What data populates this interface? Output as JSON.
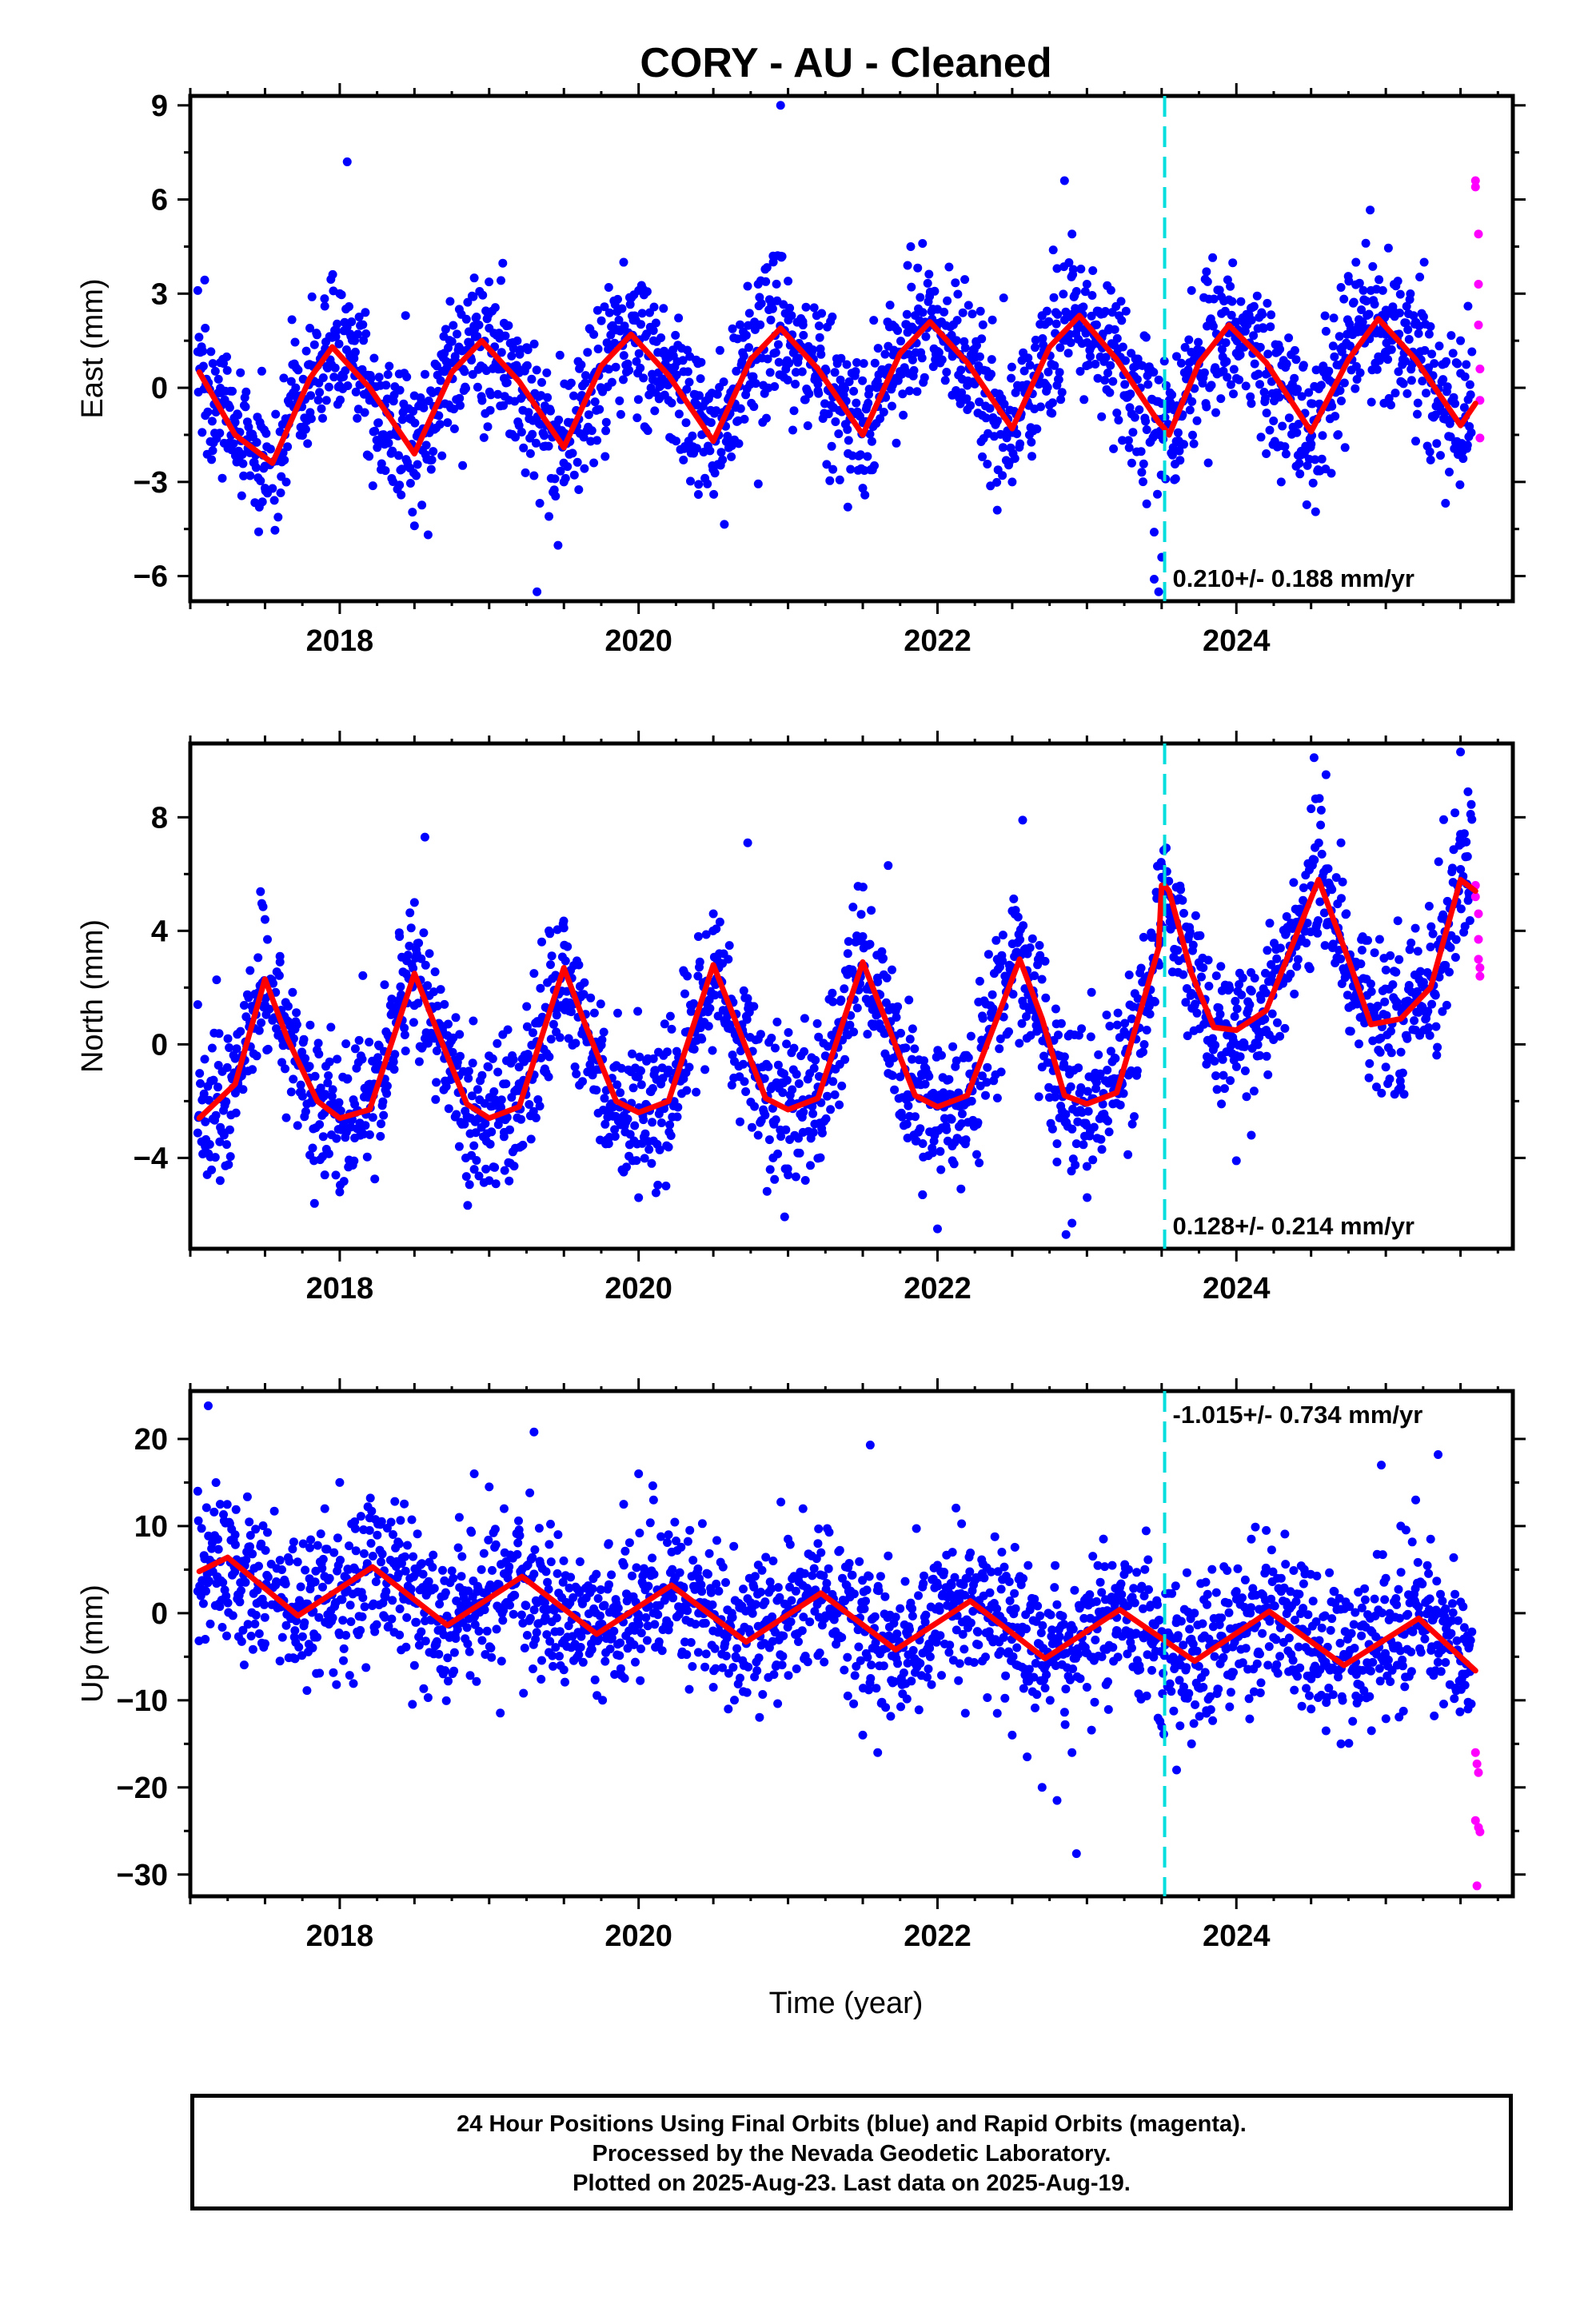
{
  "title": "CORY  - AU - Cleaned",
  "x_axis_label": "Time (year)",
  "colors": {
    "final": "#0000ff",
    "rapid": "#ff00ff",
    "model": "#ff0000",
    "offset": "#00dddd"
  },
  "footer": {
    "line1": "24 Hour Positions Using Final Orbits (blue) and Rapid Orbits (magenta).",
    "line2": "Processed by the Nevada Geodetic Laboratory.",
    "line3": "Plotted on 2025-Aug-23. Last data on 2025-Aug-19."
  },
  "chart_data": [
    {
      "type": "scatter",
      "component": "east",
      "ylabel": "East (mm)",
      "xlim": [
        2017.0,
        2025.85
      ],
      "ylim": [
        -6.8,
        9.3
      ],
      "x_ticks": [
        2018,
        2020,
        2022,
        2024
      ],
      "y_ticks": [
        -6,
        -3,
        0,
        3,
        6,
        9
      ],
      "y_tick_labels": [
        "−6",
        "−3",
        "0",
        "3",
        "6",
        "9"
      ],
      "offset_epoch": 2023.52,
      "rate_label": "0.210+/- 0.188 mm/yr",
      "rate_label_pos": "bottom-right",
      "model": {
        "x": [
          2017.06,
          2017.3,
          2017.55,
          2017.8,
          2017.95,
          2018.2,
          2018.5,
          2018.75,
          2018.95,
          2019.2,
          2019.5,
          2019.75,
          2019.95,
          2020.2,
          2020.5,
          2020.75,
          2020.95,
          2021.2,
          2021.5,
          2021.75,
          2021.95,
          2022.2,
          2022.5,
          2022.75,
          2022.95,
          2023.2,
          2023.48,
          2023.52,
          2023.55,
          2023.75,
          2023.95,
          2024.2,
          2024.5,
          2024.75,
          2024.95,
          2025.2,
          2025.5,
          2025.6
        ],
        "y": [
          0.5,
          -1.5,
          -2.4,
          0.3,
          1.3,
          0.0,
          -2.1,
          0.5,
          1.5,
          0.2,
          -1.9,
          0.7,
          1.7,
          0.4,
          -1.7,
          0.9,
          1.9,
          0.6,
          -1.5,
          1.1,
          2.1,
          0.8,
          -1.3,
          1.3,
          2.3,
          0.9,
          -1.1,
          -1.3,
          -1.5,
          0.8,
          2.0,
          0.8,
          -1.4,
          0.9,
          2.2,
          0.9,
          -1.2,
          -0.5
        ]
      },
      "final_samples": {
        "x": [
          2017.05,
          2017.1,
          2017.15,
          2017.2,
          2017.3,
          2017.4,
          2017.5,
          2017.6,
          2017.7,
          2017.8,
          2017.9,
          2018.0,
          2018.1,
          2018.2,
          2018.3,
          2018.4,
          2018.5,
          2018.6,
          2018.7,
          2018.8,
          2018.9,
          2019.0,
          2019.1,
          2019.2,
          2019.3,
          2019.4,
          2019.5,
          2019.6,
          2019.7,
          2019.8,
          2019.9,
          2020.0,
          2020.1,
          2020.2,
          2020.3,
          2020.4,
          2020.5,
          2020.6,
          2020.7,
          2020.8,
          2020.9,
          2021.0,
          2021.1,
          2021.2,
          2021.3,
          2021.4,
          2021.5,
          2021.6,
          2021.7,
          2021.8,
          2021.9,
          2022.0,
          2022.1,
          2022.2,
          2022.3,
          2022.4,
          2022.5,
          2022.6,
          2022.7,
          2022.8,
          2022.9,
          2023.0,
          2023.1,
          2023.2,
          2023.3,
          2023.4,
          2023.45,
          2023.5,
          2023.6,
          2023.7,
          2023.8,
          2023.9,
          2024.0,
          2024.1,
          2024.2,
          2024.3,
          2024.4,
          2024.5,
          2024.6,
          2024.7,
          2024.8,
          2024.9,
          2025.0,
          2025.1,
          2025.2,
          2025.3,
          2025.4,
          2025.5,
          2025.55,
          2018.05,
          2020.95,
          2022.85,
          2019.32,
          2023.48,
          2023.45
        ],
        "y": [
          3.1,
          1.9,
          -2.0,
          0.8,
          -1.1,
          -2.8,
          -3.2,
          -1.4,
          -0.2,
          1.9,
          2.6,
          3.0,
          1.5,
          -0.4,
          -1.8,
          -3.1,
          -4.4,
          -1.2,
          1.1,
          2.5,
          3.5,
          1.9,
          0.3,
          -1.2,
          -2.8,
          -4.1,
          -3.0,
          -1.0,
          1.7,
          3.2,
          4.0,
          3.1,
          1.5,
          -0.4,
          -2.3,
          -3.4,
          -2.6,
          -0.9,
          1.6,
          3.3,
          4.2,
          3.4,
          2.0,
          -0.1,
          -2.6,
          -3.8,
          -3.2,
          -0.6,
          2.0,
          3.9,
          4.6,
          2.5,
          1.0,
          -0.7,
          -2.2,
          -3.9,
          -3.0,
          0.1,
          2.3,
          3.8,
          4.9,
          3.3,
          1.6,
          -0.8,
          -2.4,
          -3.7,
          -4.6,
          -5.4,
          1.0,
          3.1,
          3.7,
          2.9,
          1.1,
          -0.5,
          -2.1,
          -3.0,
          -2.5,
          -0.5,
          1.8,
          3.2,
          4.0,
          3.1,
          1.7,
          0.2,
          -1.7,
          -2.3,
          -1.0,
          1.5,
          2.6,
          7.2,
          9.0,
          6.6,
          -6.5,
          -6.5,
          -6.1
        ]
      },
      "rapid": {
        "x": [
          2025.6,
          2025.6,
          2025.62,
          2025.62,
          2025.62,
          2025.63,
          2025.63,
          2025.63
        ],
        "y": [
          6.6,
          6.4,
          4.9,
          3.3,
          2.0,
          0.6,
          -0.4,
          -1.6
        ]
      }
    },
    {
      "type": "scatter",
      "component": "north",
      "ylabel": "North (mm)",
      "xlim": [
        2017.0,
        2025.85
      ],
      "ylim": [
        -7.2,
        10.6
      ],
      "x_ticks": [
        2018,
        2020,
        2022,
        2024
      ],
      "y_ticks": [
        -4,
        0,
        4,
        8
      ],
      "y_tick_labels": [
        "−4",
        "0",
        "4",
        "8"
      ],
      "offset_epoch": 2023.52,
      "rate_label": "0.128+/- 0.214 mm/yr",
      "rate_label_pos": "bottom-right",
      "model": {
        "x": [
          2017.06,
          2017.3,
          2017.5,
          2017.65,
          2017.85,
          2018.0,
          2018.2,
          2018.5,
          2018.65,
          2018.85,
          2019.0,
          2019.2,
          2019.5,
          2019.65,
          2019.85,
          2020.0,
          2020.2,
          2020.5,
          2020.65,
          2020.85,
          2021.0,
          2021.2,
          2021.5,
          2021.65,
          2021.85,
          2022.0,
          2022.2,
          2022.55,
          2022.7,
          2022.85,
          2023.0,
          2023.2,
          2023.48,
          2023.5,
          2023.52,
          2023.55,
          2023.7,
          2023.85,
          2024.0,
          2024.2,
          2024.55,
          2024.75,
          2024.9,
          2025.1,
          2025.3,
          2025.5,
          2025.6
        ],
        "y": [
          -2.6,
          -1.4,
          2.3,
          0.2,
          -2.0,
          -2.6,
          -2.3,
          2.5,
          0.5,
          -2.1,
          -2.6,
          -2.2,
          2.7,
          0.6,
          -2.0,
          -2.4,
          -2.0,
          2.8,
          0.8,
          -1.9,
          -2.3,
          -1.9,
          2.9,
          0.9,
          -1.8,
          -2.2,
          -1.8,
          3.0,
          0.9,
          -1.8,
          -2.1,
          -1.7,
          3.4,
          5.6,
          5.6,
          5.4,
          2.5,
          0.6,
          0.5,
          1.2,
          5.8,
          3.0,
          0.7,
          0.9,
          2.0,
          5.8,
          5.4
        ]
      },
      "final_samples": {
        "x": [
          2017.05,
          2017.1,
          2017.2,
          2017.3,
          2017.4,
          2017.5,
          2017.6,
          2017.7,
          2017.8,
          2017.9,
          2018.0,
          2018.1,
          2018.2,
          2018.3,
          2018.4,
          2018.5,
          2018.6,
          2018.7,
          2018.8,
          2018.9,
          2019.0,
          2019.1,
          2019.2,
          2019.3,
          2019.4,
          2019.5,
          2019.6,
          2019.7,
          2019.8,
          2019.9,
          2020.0,
          2020.1,
          2020.2,
          2020.3,
          2020.4,
          2020.5,
          2020.6,
          2020.7,
          2020.8,
          2020.9,
          2021.0,
          2021.1,
          2021.2,
          2021.3,
          2021.4,
          2021.5,
          2021.6,
          2021.7,
          2021.8,
          2021.9,
          2022.0,
          2022.1,
          2022.2,
          2022.3,
          2022.4,
          2022.5,
          2022.6,
          2022.7,
          2022.8,
          2022.9,
          2023.0,
          2023.1,
          2023.2,
          2023.3,
          2023.4,
          2023.5,
          2023.6,
          2023.7,
          2023.8,
          2023.9,
          2024.0,
          2024.1,
          2024.2,
          2024.3,
          2024.4,
          2024.5,
          2024.6,
          2024.7,
          2024.8,
          2024.9,
          2025.0,
          2025.1,
          2025.2,
          2025.3,
          2025.4,
          2025.5,
          2025.55,
          2018.57,
          2020.73,
          2021.67,
          2022.57,
          2021.9,
          2022.86,
          2024.52,
          2025.5
        ],
        "y": [
          1.4,
          -3.6,
          -4.8,
          -0.5,
          2.6,
          4.4,
          3.1,
          -0.6,
          -3.9,
          -4.6,
          -5.2,
          -3.3,
          -1.4,
          2.1,
          3.8,
          5.0,
          3.2,
          -0.5,
          -3.6,
          -4.4,
          -4.8,
          -3.1,
          -0.8,
          2.5,
          4.0,
          4.1,
          2.8,
          -0.4,
          -3.5,
          -4.5,
          -5.4,
          -3.4,
          -0.9,
          2.6,
          3.8,
          4.6,
          3.0,
          -0.7,
          -3.2,
          -4.0,
          -4.6,
          -3.1,
          -1.5,
          1.5,
          3.2,
          3.8,
          2.2,
          -1.1,
          -3.3,
          -5.3,
          -6.5,
          -4.1,
          -2.0,
          1.0,
          3.0,
          4.7,
          2.6,
          -0.8,
          -3.5,
          -6.3,
          -4.3,
          -3.7,
          -1.5,
          0.9,
          2.3,
          6.3,
          4.3,
          1.8,
          -0.7,
          -2.1,
          -4.1,
          -3.2,
          0.5,
          2.3,
          4.3,
          8.3,
          9.5,
          7.1,
          2.9,
          0.9,
          -0.8,
          -1.5,
          0.5,
          2.4,
          4.4,
          7.4,
          8.9,
          7.3,
          7.1,
          6.3,
          7.9,
          -5.3,
          -6.7,
          10.1,
          10.3
        ]
      },
      "rapid": {
        "x": [
          2025.6,
          2025.6,
          2025.62,
          2025.62,
          2025.62,
          2025.63,
          2025.63
        ],
        "y": [
          5.6,
          5.2,
          4.6,
          3.7,
          3.0,
          2.7,
          2.4
        ]
      }
    },
    {
      "type": "scatter",
      "component": "up",
      "ylabel": "Up (mm)",
      "xlim": [
        2017.0,
        2025.85
      ],
      "ylim": [
        -32.5,
        25.5
      ],
      "x_ticks": [
        2018,
        2020,
        2022,
        2024
      ],
      "y_ticks": [
        -30,
        -20,
        -10,
        0,
        10,
        20
      ],
      "y_tick_labels": [
        "−30",
        "−20",
        "−10",
        "0",
        "10",
        "20"
      ],
      "offset_epoch": 2023.52,
      "rate_label": "-1.015+/- 0.734 mm/yr",
      "rate_label_pos": "top-right",
      "model": {
        "x": [
          2017.06,
          2017.25,
          2017.72,
          2018.22,
          2018.72,
          2019.22,
          2019.72,
          2020.22,
          2020.72,
          2021.22,
          2021.72,
          2022.22,
          2022.72,
          2023.22,
          2023.72,
          2024.22,
          2024.72,
          2025.22,
          2025.6
        ],
        "y": [
          4.8,
          6.4,
          -0.3,
          5.3,
          -1.4,
          4.2,
          -2.4,
          3.2,
          -3.3,
          2.3,
          -4.2,
          1.4,
          -5.2,
          0.4,
          -5.5,
          0.2,
          -6.0,
          -0.6,
          -6.6
        ]
      },
      "final_samples": {
        "x": [
          2017.05,
          2017.1,
          2017.2,
          2017.3,
          2017.4,
          2017.5,
          2017.6,
          2017.7,
          2017.8,
          2017.9,
          2018.0,
          2018.1,
          2018.2,
          2018.3,
          2018.4,
          2018.5,
          2018.6,
          2018.7,
          2018.8,
          2018.9,
          2019.0,
          2019.1,
          2019.2,
          2019.3,
          2019.4,
          2019.5,
          2019.6,
          2019.7,
          2019.8,
          2019.9,
          2020.0,
          2020.1,
          2020.2,
          2020.3,
          2020.4,
          2020.5,
          2020.6,
          2020.7,
          2020.8,
          2020.9,
          2021.0,
          2021.1,
          2021.2,
          2021.3,
          2021.4,
          2021.5,
          2021.6,
          2021.7,
          2021.8,
          2021.9,
          2022.0,
          2022.1,
          2022.2,
          2022.3,
          2022.4,
          2022.5,
          2022.6,
          2022.7,
          2022.8,
          2022.9,
          2023.0,
          2023.1,
          2023.2,
          2023.3,
          2023.4,
          2023.5,
          2023.6,
          2023.7,
          2023.8,
          2023.9,
          2024.0,
          2024.1,
          2024.2,
          2024.3,
          2024.4,
          2024.5,
          2024.6,
          2024.7,
          2024.8,
          2024.9,
          2025.0,
          2025.1,
          2025.2,
          2025.3,
          2025.4,
          2025.5,
          2025.55,
          2017.12,
          2019.3,
          2021.55,
          2022.93,
          2024.97,
          2025.35
        ],
        "y": [
          14.0,
          -3.0,
          12.5,
          9.0,
          4.5,
          -3.5,
          -5.5,
          -2.0,
          7.5,
          12.0,
          15.0,
          10.5,
          9.5,
          2.0,
          -2.5,
          -6.0,
          -4.5,
          2.0,
          11.0,
          16.0,
          14.5,
          12.0,
          9.0,
          4.5,
          -4.5,
          -6.5,
          -4.0,
          0.5,
          8.0,
          12.5,
          16.0,
          13.0,
          9.0,
          3.0,
          -4.5,
          -8.5,
          -11.0,
          -9.0,
          -1.5,
          6.0,
          8.5,
          12.0,
          8.0,
          -0.5,
          -9.5,
          -14.0,
          -16.0,
          -8.0,
          -2.5,
          3.0,
          5.5,
          7.0,
          4.0,
          -5.5,
          -11.5,
          -14.0,
          -16.5,
          -20.0,
          -21.5,
          -16.0,
          -8.5,
          -5.0,
          -0.5,
          -4.0,
          -9.5,
          -13.0,
          -18.0,
          -15.0,
          -11.5,
          -3.5,
          2.5,
          8.5,
          9.5,
          4.0,
          -6.5,
          -11.0,
          -13.5,
          -15.0,
          -9.5,
          -2.0,
          4.0,
          10.0,
          13.0,
          8.5,
          0.5,
          -5.5,
          -11.0,
          23.8,
          20.8,
          19.3,
          -27.6,
          17.0,
          18.2
        ]
      },
      "rapid": {
        "x": [
          2025.6,
          2025.61,
          2025.62,
          2025.6,
          2025.62,
          2025.63,
          2025.61
        ],
        "y": [
          -16.0,
          -17.3,
          -18.3,
          -23.8,
          -24.6,
          -25.1,
          -31.3
        ]
      }
    }
  ]
}
